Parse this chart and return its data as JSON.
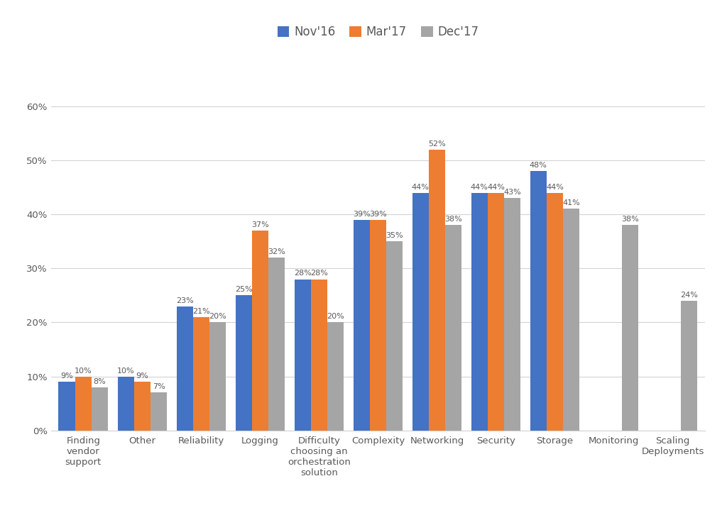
{
  "categories": [
    "Finding\nvendor\nsupport",
    "Other",
    "Reliability",
    "Logging",
    "Difficulty\nchoosing an\norchestration\nsolution",
    "Complexity",
    "Networking",
    "Security",
    "Storage",
    "Monitoring",
    "Scaling\nDeployments"
  ],
  "series": {
    "Nov'16": [
      9,
      10,
      23,
      25,
      28,
      39,
      44,
      44,
      48,
      null,
      null
    ],
    "Mar'17": [
      10,
      9,
      21,
      37,
      28,
      39,
      52,
      44,
      44,
      null,
      null
    ],
    "Dec'17": [
      8,
      7,
      20,
      32,
      20,
      35,
      38,
      43,
      41,
      38,
      24
    ]
  },
  "colors": {
    "Nov'16": "#4472C4",
    "Mar'17": "#ED7D31",
    "Dec'17": "#A5A5A5"
  },
  "legend_labels": [
    "Nov'16",
    "Mar'17",
    "Dec'17"
  ],
  "ylim": [
    0,
    68
  ],
  "yticks": [
    0,
    10,
    20,
    30,
    40,
    50,
    60
  ],
  "ytick_labels": [
    "0%",
    "10%",
    "20%",
    "30%",
    "40%",
    "50%",
    "60%"
  ],
  "background_color": "#FFFFFF",
  "grid_color": "#D3D3D3",
  "bar_label_fontsize": 8.0,
  "axis_label_fontsize": 9.5,
  "legend_fontsize": 12
}
